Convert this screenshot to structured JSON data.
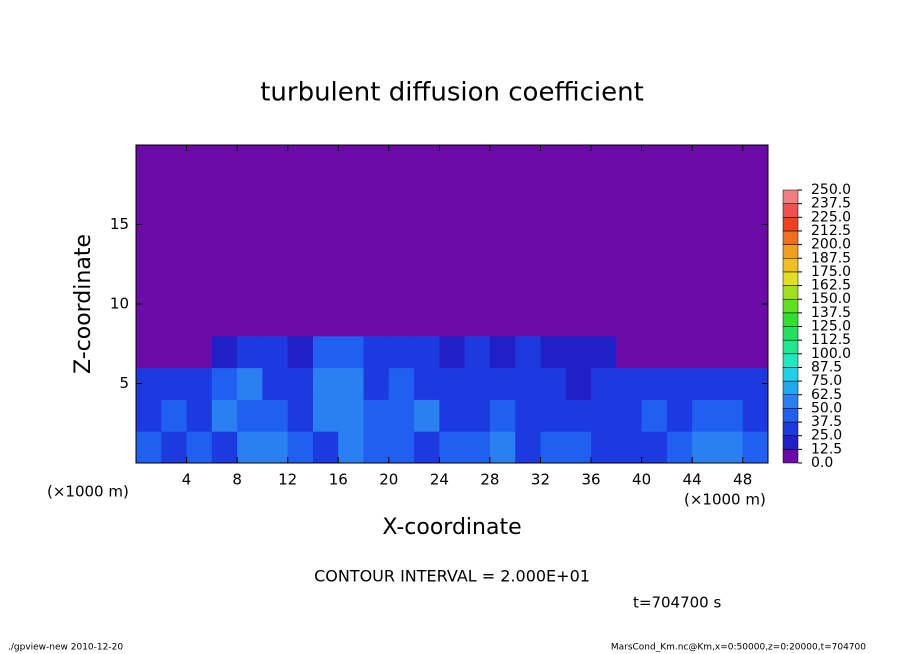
{
  "chart_data": {
    "type": "heatmap",
    "title": "turbulent diffusion coefficient",
    "xlabel": "X-coordinate",
    "ylabel": "Z-coordinate",
    "xunit": "(×1000 m)",
    "xlim": [
      0,
      50
    ],
    "ylim": [
      0,
      20
    ],
    "xticks": [
      4,
      8,
      12,
      16,
      20,
      24,
      28,
      32,
      36,
      40,
      44,
      48
    ],
    "yticks": [
      5,
      10,
      15
    ],
    "xbins": [
      0,
      2,
      4,
      6,
      8,
      10,
      12,
      14,
      16,
      18,
      20,
      22,
      24,
      26,
      28,
      30,
      32,
      34,
      36,
      38,
      40,
      42,
      44,
      46,
      48,
      50
    ],
    "zbins": [
      0,
      2,
      4,
      6,
      8,
      10,
      12,
      14,
      16,
      18,
      20
    ],
    "values": [
      [
        40,
        35,
        45,
        30,
        50,
        55,
        40,
        35,
        60,
        45,
        40,
        35,
        45,
        40,
        50,
        35,
        40,
        45,
        30,
        25,
        35,
        40,
        50,
        55,
        45
      ],
      [
        30,
        40,
        35,
        50,
        45,
        40,
        30,
        55,
        60,
        40,
        45,
        50,
        35,
        30,
        40,
        35,
        30,
        25,
        30,
        35,
        40,
        35,
        45,
        40,
        35
      ],
      [
        25,
        35,
        30,
        45,
        50,
        30,
        25,
        50,
        55,
        35,
        40,
        30,
        30,
        25,
        30,
        30,
        25,
        20,
        30,
        25,
        30,
        25,
        30,
        35,
        30
      ],
      [
        0,
        0,
        10,
        20,
        25,
        25,
        20,
        40,
        45,
        30,
        30,
        25,
        20,
        25,
        20,
        25,
        20,
        20,
        15,
        10,
        10,
        5,
        5,
        5,
        0
      ],
      [
        0,
        0,
        0,
        0,
        0,
        0,
        0,
        0,
        10,
        5,
        0,
        0,
        0,
        0,
        0,
        0,
        0,
        0,
        0,
        0,
        0,
        0,
        0,
        0,
        0
      ],
      [
        0,
        0,
        0,
        0,
        0,
        0,
        0,
        0,
        0,
        0,
        0,
        0,
        0,
        0,
        0,
        0,
        0,
        0,
        0,
        0,
        0,
        0,
        0,
        0,
        0
      ],
      [
        0,
        0,
        0,
        0,
        0,
        0,
        0,
        0,
        0,
        0,
        0,
        0,
        0,
        0,
        0,
        0,
        0,
        0,
        0,
        0,
        0,
        0,
        0,
        0,
        0
      ],
      [
        0,
        0,
        0,
        0,
        0,
        0,
        0,
        0,
        0,
        0,
        0,
        0,
        0,
        0,
        0,
        0,
        0,
        0,
        0,
        0,
        0,
        0,
        0,
        0,
        0
      ],
      [
        0,
        0,
        0,
        0,
        0,
        0,
        0,
        0,
        0,
        0,
        0,
        0,
        0,
        0,
        0,
        0,
        0,
        0,
        0,
        0,
        0,
        0,
        0,
        0,
        0
      ],
      [
        0,
        0,
        0,
        0,
        0,
        0,
        0,
        0,
        0,
        0,
        0,
        0,
        0,
        0,
        0,
        0,
        0,
        0,
        0,
        0,
        0,
        0,
        0,
        0,
        0
      ]
    ],
    "colorbar": {
      "levels": [
        {
          "value": 0,
          "label": "0.0"
        },
        {
          "value": 12.5,
          "label": "12.5"
        },
        {
          "value": 25,
          "label": "25.0"
        },
        {
          "value": 37.5,
          "label": "37.5"
        },
        {
          "value": 50,
          "label": "50.0"
        },
        {
          "value": 62.5,
          "label": "62.5"
        },
        {
          "value": 75,
          "label": "75.0"
        },
        {
          "value": 87.5,
          "label": "87.5"
        },
        {
          "value": 100,
          "label": "100.0"
        },
        {
          "value": 112.5,
          "label": "112.5"
        },
        {
          "value": 125,
          "label": "125.0"
        },
        {
          "value": 137.5,
          "label": "137.5"
        },
        {
          "value": 150,
          "label": "150.0"
        },
        {
          "value": 162.5,
          "label": "162.5"
        },
        {
          "value": 175,
          "label": "175.0"
        },
        {
          "value": 187.5,
          "label": "187.5"
        },
        {
          "value": 200,
          "label": "200.0"
        },
        {
          "value": 212.5,
          "label": "212.5"
        },
        {
          "value": 225,
          "label": "225.0"
        },
        {
          "value": 237.5,
          "label": "237.5"
        },
        {
          "value": 250,
          "label": "250.0"
        }
      ],
      "colors": [
        "#6c0aa8",
        "#2020c8",
        "#1c3ae0",
        "#2060f0",
        "#2a80f0",
        "#20a8f0",
        "#20d0e8",
        "#20e8c0",
        "#20e890",
        "#20e060",
        "#30e030",
        "#60e020",
        "#a0e020",
        "#e0e020",
        "#f0c020",
        "#f0a020",
        "#f07020",
        "#f04020",
        "#f05050",
        "#f08080"
      ]
    },
    "contour_interval": "CONTOUR INTERVAL = 2.000E+01",
    "time_label": "t=704700 s",
    "footer_left": "./gpview-new  2010-12-20",
    "footer_right": "MarsCond_Km.nc@Km,x=0:50000,z=0:20000,t=704700"
  }
}
